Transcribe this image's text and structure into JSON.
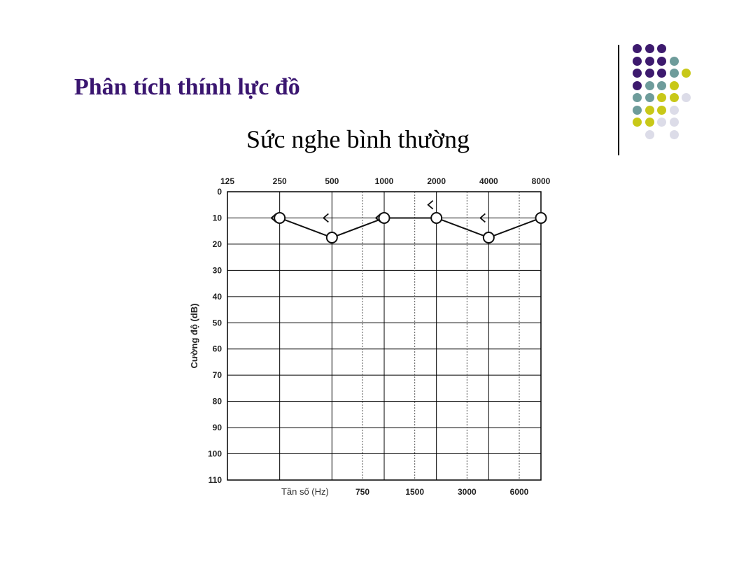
{
  "slide": {
    "title": "Phân tích thính lực đồ",
    "subtitle": "Sức nghe bình thường"
  },
  "decor": {
    "dot_colors": [
      "#3d1a6e",
      "#6e9c9b",
      "#c8c818",
      "#dcdce8"
    ]
  },
  "chart_data": {
    "type": "line",
    "title": "",
    "xlabel": "Tần số (Hz)",
    "ylabel": "Cường độ (dB)",
    "y_inverted": true,
    "ylim": [
      0,
      110
    ],
    "yticks": [
      0,
      10,
      20,
      30,
      40,
      50,
      60,
      70,
      80,
      90,
      100,
      110
    ],
    "x_major_top": [
      "125",
      "250",
      "500",
      "1000",
      "2000",
      "4000",
      "8000"
    ],
    "x_minor_bottom": [
      "750",
      "1500",
      "3000",
      "6000"
    ],
    "grid": true,
    "series": [
      {
        "marker": "circle",
        "x": [
          250,
          500,
          1000,
          2000,
          4000,
          8000
        ],
        "y": [
          10,
          17.5,
          10,
          10,
          17.5,
          10
        ]
      },
      {
        "marker": "bracket-left",
        "x": [
          250,
          500,
          1000,
          2000,
          4000
        ],
        "y": [
          10,
          10,
          10,
          5,
          10
        ]
      }
    ]
  }
}
